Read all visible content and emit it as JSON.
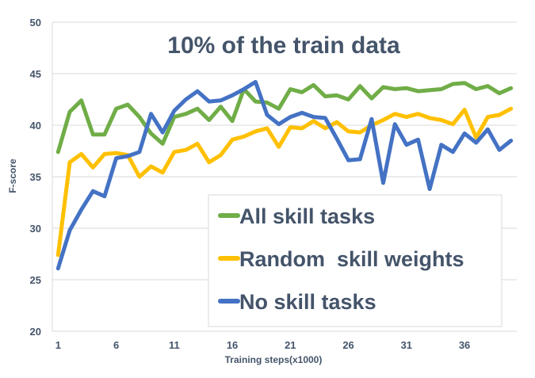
{
  "chart_data": {
    "type": "line",
    "title": "10% of the train data",
    "xlabel": "Training steps(x1000)",
    "ylabel": "F-score",
    "x": [
      1,
      2,
      3,
      4,
      5,
      6,
      7,
      8,
      9,
      10,
      11,
      12,
      13,
      14,
      15,
      16,
      17,
      18,
      19,
      20,
      21,
      22,
      23,
      24,
      25,
      26,
      27,
      28,
      29,
      30,
      31,
      32,
      33,
      34,
      35,
      36,
      37,
      38,
      39,
      40
    ],
    "x_tick_labels": [
      "1",
      "6",
      "11",
      "16",
      "21",
      "26",
      "31",
      "36"
    ],
    "x_tick_values": [
      1,
      6,
      11,
      16,
      21,
      26,
      31,
      36
    ],
    "ylim": [
      20,
      50
    ],
    "y_ticks": [
      20,
      25,
      30,
      35,
      40,
      45,
      50
    ],
    "grid": "horizontal",
    "legend": "bottom-right",
    "series": [
      {
        "name": "All skill tasks",
        "color": "#70ad47",
        "values": [
          37.4,
          41.3,
          42.4,
          39.1,
          39.1,
          41.6,
          42.0,
          40.8,
          39.2,
          38.2,
          40.8,
          41.1,
          41.6,
          40.5,
          41.8,
          40.4,
          43.5,
          42.3,
          42.2,
          41.6,
          43.5,
          43.2,
          43.9,
          42.8,
          42.9,
          42.5,
          43.8,
          42.6,
          43.7,
          43.5,
          43.6,
          43.3,
          43.4,
          43.5,
          44.0,
          44.1,
          43.5,
          43.8,
          43.1,
          43.6
        ]
      },
      {
        "name": "Random  skill weights",
        "color": "#ffc000",
        "values": [
          27.4,
          36.4,
          37.2,
          35.9,
          37.2,
          37.3,
          37.1,
          35.0,
          36.0,
          35.4,
          37.4,
          37.6,
          38.2,
          36.4,
          37.1,
          38.6,
          38.9,
          39.4,
          39.7,
          37.9,
          39.8,
          39.7,
          40.4,
          39.7,
          40.3,
          39.4,
          39.3,
          40.0,
          40.5,
          41.1,
          40.8,
          41.1,
          40.7,
          40.5,
          40.1,
          41.5,
          38.8,
          40.8,
          41.0,
          41.6
        ]
      },
      {
        "name": "No skill tasks",
        "color": "#4472c4",
        "values": [
          26.1,
          29.8,
          31.8,
          33.6,
          33.1,
          36.8,
          37.0,
          37.4,
          41.1,
          39.3,
          41.4,
          42.5,
          43.3,
          42.3,
          42.4,
          42.9,
          43.5,
          44.2,
          41.0,
          40.1,
          40.8,
          41.2,
          40.8,
          40.7,
          38.7,
          36.6,
          36.7,
          40.6,
          34.4,
          40.1,
          38.1,
          38.6,
          33.8,
          38.1,
          37.4,
          39.2,
          38.3,
          39.6,
          37.6,
          38.5
        ]
      }
    ]
  }
}
